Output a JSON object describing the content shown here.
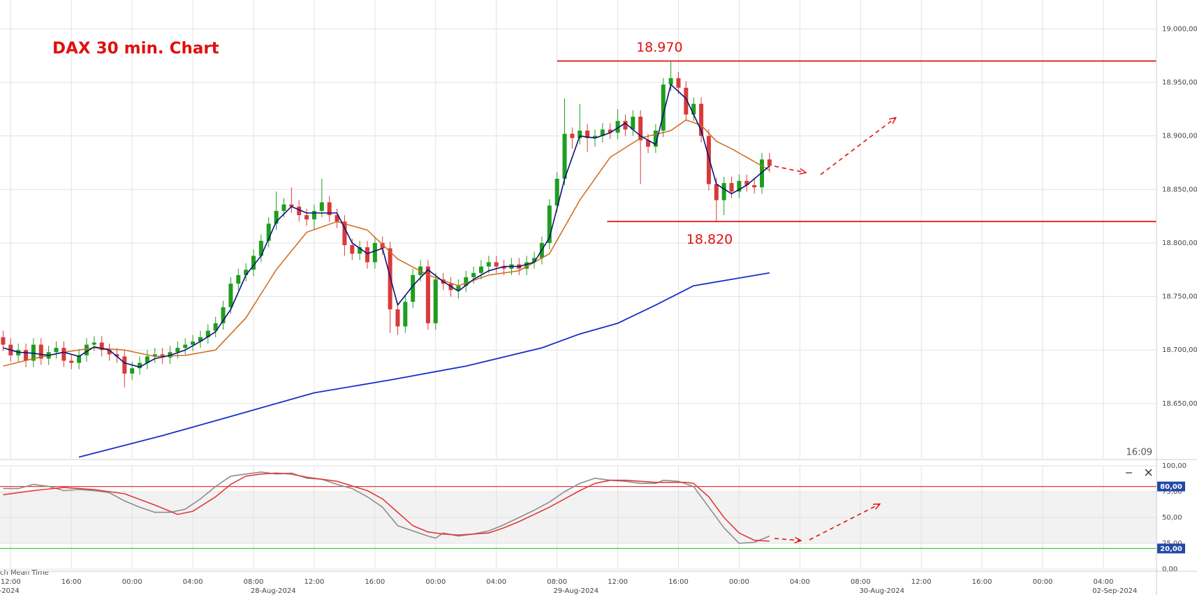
{
  "chart_data": [
    {
      "type": "candlestick",
      "title": "DAX 30 min. Chart",
      "time_stamp": "16:09",
      "timezone_label": "ch Mean Time",
      "up_color": "#1e9e1e",
      "down_color": "#d83a3a",
      "grid": true,
      "xlim": [
        -1.41,
        151
      ],
      "ylim": [
        18599,
        19027
      ],
      "xticks": [
        {
          "value": 0,
          "label": "12:00"
        },
        {
          "value": 8,
          "label": "16:00"
        },
        {
          "value": 16,
          "label": "00:00"
        },
        {
          "value": 24,
          "label": "04:00"
        },
        {
          "value": 32,
          "label": "08:00"
        },
        {
          "value": 40,
          "label": "12:00"
        },
        {
          "value": 48,
          "label": "16:00"
        },
        {
          "value": 56,
          "label": "00:00"
        },
        {
          "value": 64,
          "label": "04:00"
        },
        {
          "value": 72,
          "label": "08:00"
        },
        {
          "value": 80,
          "label": "12:00"
        },
        {
          "value": 88,
          "label": "16:00"
        },
        {
          "value": 96,
          "label": "00:00"
        },
        {
          "value": 104,
          "label": "04:00"
        },
        {
          "value": 112,
          "label": "08:00"
        },
        {
          "value": 120,
          "label": "12:00"
        },
        {
          "value": 128,
          "label": "16:00"
        },
        {
          "value": 136,
          "label": "00:00"
        },
        {
          "value": 144,
          "label": "04:00"
        }
      ],
      "date_labels": [
        {
          "value": -0.2,
          "label": "-2024"
        },
        {
          "value": 34.6,
          "label": "28-Aug-2024"
        },
        {
          "value": 74.5,
          "label": "29-Aug-2024"
        },
        {
          "value": 114.8,
          "label": "30-Aug-2024"
        },
        {
          "value": 145.5,
          "label": "02-Sep-2024"
        }
      ],
      "yticks": [
        {
          "value": 18650,
          "label": "18.650,00"
        },
        {
          "value": 18700,
          "label": "18.700,00"
        },
        {
          "value": 18750,
          "label": "18.750,00"
        },
        {
          "value": 18800,
          "label": "18.800,00"
        },
        {
          "value": 18850,
          "label": "18.850,00"
        },
        {
          "value": 18900,
          "label": "18.900,00"
        },
        {
          "value": 18950,
          "label": "18.950,00"
        },
        {
          "value": 19000,
          "label": "19.000,00"
        }
      ],
      "levels": [
        {
          "value": 18970,
          "label": "18.970",
          "x_from": 72,
          "color": "#e01010"
        },
        {
          "value": 18820,
          "label": "18.820",
          "x_from": 78.6,
          "color": "#e01010"
        }
      ],
      "x": [
        -1,
        0,
        1,
        2,
        3,
        4,
        5,
        6,
        7,
        8,
        9,
        10,
        11,
        12,
        13,
        14,
        15,
        16,
        17,
        18,
        19,
        20,
        21,
        22,
        23,
        24,
        25,
        26,
        27,
        28,
        29,
        30,
        31,
        32,
        33,
        34,
        35,
        36,
        37,
        38,
        39,
        40,
        41,
        42,
        43,
        44,
        45,
        46,
        47,
        48,
        49,
        50,
        51,
        52,
        53,
        54,
        55,
        56,
        57,
        58,
        59,
        60,
        61,
        62,
        63,
        64,
        65,
        66,
        67,
        68,
        69,
        70,
        71,
        72,
        73,
        74,
        75,
        76,
        77,
        78,
        79,
        80,
        81,
        82,
        83,
        84,
        85,
        86,
        87,
        88,
        89,
        90,
        91,
        92,
        93,
        94,
        95,
        96,
        97,
        98,
        99,
        100
      ],
      "open": [
        18712,
        18705,
        18695,
        18700,
        18690,
        18705,
        18692,
        18698,
        18702,
        18690,
        18688,
        18695,
        18705,
        18707,
        18700,
        18696,
        18694,
        18678,
        18683,
        18688,
        18694,
        18696,
        18693,
        18698,
        18702,
        18705,
        18708,
        18712,
        18718,
        18725,
        18740,
        18762,
        18770,
        18775,
        18788,
        18802,
        18818,
        18830,
        18836,
        18834,
        18826,
        18822,
        18830,
        18838,
        18826,
        18820,
        18798,
        18790,
        18796,
        18782,
        18800,
        18795,
        18738,
        18722,
        18745,
        18770,
        18778,
        18725,
        18766,
        18762,
        18756,
        18760,
        18768,
        18772,
        18778,
        18782,
        18778,
        18776,
        18780,
        18776,
        18782,
        18786,
        18800,
        18835,
        18860,
        18902,
        18898,
        18905,
        18898,
        18900,
        18906,
        18903,
        18914,
        18906,
        18918,
        18896,
        18890,
        18905,
        18948,
        18954,
        18945,
        18920,
        18930,
        18900,
        18855,
        18840,
        18856,
        18848,
        18858,
        18854,
        18852,
        18878
      ],
      "high": [
        18718,
        18711,
        18706,
        18706,
        18711,
        18711,
        18704,
        18708,
        18708,
        18696,
        18701,
        18711,
        18713,
        18713,
        18706,
        18702,
        18700,
        18689,
        18694,
        18700,
        18702,
        18702,
        18704,
        18708,
        18711,
        18714,
        18718,
        18724,
        18731,
        18746,
        18768,
        18776,
        18781,
        18794,
        18808,
        18824,
        18848,
        18842,
        18852,
        18840,
        18832,
        18836,
        18860,
        18844,
        18832,
        18826,
        18804,
        18802,
        18802,
        18806,
        18806,
        18801,
        18744,
        18751,
        18776,
        18784,
        18784,
        18772,
        18772,
        18768,
        18766,
        18774,
        18778,
        18784,
        18788,
        18788,
        18784,
        18786,
        18786,
        18788,
        18792,
        18806,
        18841,
        18866,
        18935,
        18908,
        18930,
        18911,
        18906,
        18912,
        18912,
        18925,
        18920,
        18924,
        18924,
        18902,
        18911,
        18954,
        18970,
        18960,
        18951,
        18936,
        18936,
        18906,
        18861,
        18862,
        18862,
        18864,
        18864,
        18860,
        18884,
        18884
      ],
      "low": [
        18699,
        18689,
        18689,
        18684,
        18684,
        18686,
        18686,
        18692,
        18684,
        18682,
        18682,
        18689,
        18699,
        18694,
        18690,
        18688,
        18665,
        18672,
        18677,
        18682,
        18688,
        18687,
        18687,
        18692,
        18696,
        18699,
        18702,
        18706,
        18712,
        18719,
        18734,
        18756,
        18764,
        18769,
        18782,
        18796,
        18812,
        18824,
        18828,
        18820,
        18816,
        18812,
        18824,
        18820,
        18814,
        18788,
        18784,
        18784,
        18776,
        18776,
        18789,
        18716,
        18714,
        18716,
        18739,
        18764,
        18719,
        18719,
        18756,
        18750,
        18748,
        18754,
        18762,
        18766,
        18772,
        18772,
        18770,
        18770,
        18770,
        18770,
        18776,
        18780,
        18794,
        18829,
        18854,
        18888,
        18892,
        18885,
        18890,
        18894,
        18897,
        18897,
        18900,
        18900,
        18855,
        18884,
        18884,
        18899,
        18942,
        18939,
        18914,
        18914,
        18894,
        18849,
        18820,
        18826,
        18842,
        18842,
        18848,
        18846,
        18846,
        18866
      ],
      "close": [
        18705,
        18695,
        18700,
        18690,
        18705,
        18692,
        18698,
        18702,
        18690,
        18688,
        18695,
        18705,
        18707,
        18700,
        18696,
        18694,
        18678,
        18683,
        18688,
        18694,
        18696,
        18693,
        18698,
        18702,
        18705,
        18708,
        18712,
        18718,
        18725,
        18740,
        18762,
        18770,
        18775,
        18788,
        18802,
        18818,
        18830,
        18836,
        18834,
        18826,
        18822,
        18830,
        18838,
        18826,
        18820,
        18798,
        18790,
        18796,
        18782,
        18800,
        18795,
        18738,
        18722,
        18745,
        18770,
        18778,
        18725,
        18766,
        18762,
        18756,
        18760,
        18768,
        18772,
        18778,
        18782,
        18778,
        18776,
        18780,
        18776,
        18782,
        18786,
        18800,
        18835,
        18860,
        18902,
        18898,
        18905,
        18898,
        18900,
        18906,
        18903,
        18914,
        18906,
        18918,
        18896,
        18890,
        18905,
        18948,
        18954,
        18945,
        18920,
        18930,
        18900,
        18855,
        18840,
        18856,
        18848,
        18858,
        18854,
        18852,
        18878,
        18872
      ],
      "series": [
        {
          "color": "#1530c8",
          "width": 1.8,
          "x": [
            9,
            20,
            30,
            40,
            50,
            60,
            70,
            75,
            80,
            85,
            90,
            95,
            100
          ],
          "values": [
            18600,
            18620,
            18640,
            18660,
            18672,
            18685,
            18702,
            18715,
            18725,
            18742,
            18760,
            18766,
            18772
          ]
        },
        {
          "color": "#d0691a",
          "width": 1.5,
          "x": [
            -1,
            3,
            7,
            11,
            15,
            19,
            23,
            27,
            31,
            35,
            39,
            43,
            47,
            51,
            55,
            59,
            63,
            67,
            71,
            75,
            79,
            83,
            87,
            89,
            91,
            93,
            95,
            97,
            99,
            100
          ],
          "values": [
            18685,
            18692,
            18698,
            18702,
            18700,
            18694,
            18695,
            18700,
            18730,
            18775,
            18810,
            18820,
            18812,
            18785,
            18770,
            18760,
            18770,
            18774,
            18790,
            18840,
            18880,
            18898,
            18905,
            18915,
            18910,
            18895,
            18888,
            18880,
            18872,
            18868
          ]
        },
        {
          "color": "#0a1478",
          "width": 1.6,
          "x": [
            -1,
            1,
            3,
            5,
            7,
            9,
            11,
            13,
            15,
            17,
            19,
            21,
            23,
            25,
            27,
            29,
            31,
            33,
            35,
            37,
            39,
            41,
            43,
            45,
            47,
            49,
            51,
            53,
            55,
            57,
            59,
            61,
            63,
            65,
            67,
            69,
            71,
            73,
            75,
            77,
            79,
            81,
            83,
            85,
            87,
            89,
            91,
            93,
            95,
            97,
            99,
            100
          ],
          "values": [
            18702,
            18698,
            18697,
            18695,
            18698,
            18694,
            18703,
            18700,
            18688,
            18684,
            18692,
            18695,
            18700,
            18708,
            18717,
            18738,
            18770,
            18788,
            18820,
            18834,
            18828,
            18828,
            18828,
            18800,
            18790,
            18795,
            18742,
            18760,
            18775,
            18764,
            18755,
            18766,
            18774,
            18778,
            18778,
            18782,
            18805,
            18860,
            18900,
            18898,
            18903,
            18912,
            18900,
            18892,
            18948,
            18935,
            18905,
            18855,
            18846,
            18854,
            18866,
            18872
          ]
        }
      ]
    },
    {
      "type": "line",
      "grid": true,
      "xlim": [
        -1.41,
        151
      ],
      "ylim": [
        0,
        100
      ],
      "band": [
        25,
        75
      ],
      "yticks": [
        {
          "value": 0,
          "label": "0,00"
        },
        {
          "value": 25,
          "label": "25,00"
        },
        {
          "value": 50,
          "label": "50,00"
        },
        {
          "value": 75,
          "label": "75,00"
        },
        {
          "value": 100,
          "label": "100,00"
        }
      ],
      "levels": [
        {
          "value": 80,
          "label": "80,00",
          "color": "#e03a3a"
        },
        {
          "value": 20,
          "label": "20,00",
          "color": "#3cd03c"
        }
      ],
      "series": [
        {
          "color": "#8c8c8c",
          "width": 1.6,
          "x": [
            -1,
            1,
            3,
            5,
            7,
            9,
            11,
            13,
            15,
            17,
            19,
            21,
            23,
            25,
            27,
            29,
            31,
            33,
            35,
            37,
            39,
            41,
            43,
            45,
            47,
            49,
            51,
            53,
            55,
            56,
            57,
            59,
            61,
            63,
            65,
            67,
            69,
            71,
            73,
            75,
            77,
            79,
            81,
            83,
            85,
            86,
            88,
            90,
            92,
            94,
            96,
            98,
            100
          ],
          "values": [
            78,
            78,
            82,
            80,
            76,
            77,
            76,
            74,
            66,
            60,
            55,
            55,
            58,
            68,
            80,
            90,
            92,
            94,
            92,
            93,
            88,
            87,
            82,
            78,
            70,
            60,
            42,
            37,
            32,
            30,
            35,
            32,
            34,
            37,
            43,
            50,
            57,
            65,
            75,
            83,
            88,
            86,
            85,
            83,
            83,
            86,
            85,
            80,
            60,
            40,
            25,
            26,
            32
          ]
        },
        {
          "color": "#e03a3a",
          "width": 1.6,
          "x": [
            -1,
            3,
            7,
            11,
            15,
            19,
            22,
            24,
            27,
            29,
            31,
            33,
            35,
            37,
            39,
            43,
            47,
            49,
            51,
            53,
            55,
            57,
            59,
            61,
            63,
            65,
            67,
            69,
            71,
            73,
            75,
            77,
            79,
            81,
            83,
            85,
            87,
            89,
            90,
            92,
            94,
            96,
            98,
            100
          ],
          "values": [
            72,
            76,
            79,
            77,
            73,
            62,
            53,
            56,
            70,
            82,
            90,
            92,
            93,
            92,
            89,
            85,
            76,
            68,
            55,
            42,
            36,
            34,
            33,
            34,
            35,
            40,
            46,
            53,
            60,
            68,
            76,
            83,
            86,
            86,
            85,
            84,
            84,
            84,
            83,
            70,
            50,
            35,
            28,
            27
          ]
        }
      ]
    }
  ]
}
